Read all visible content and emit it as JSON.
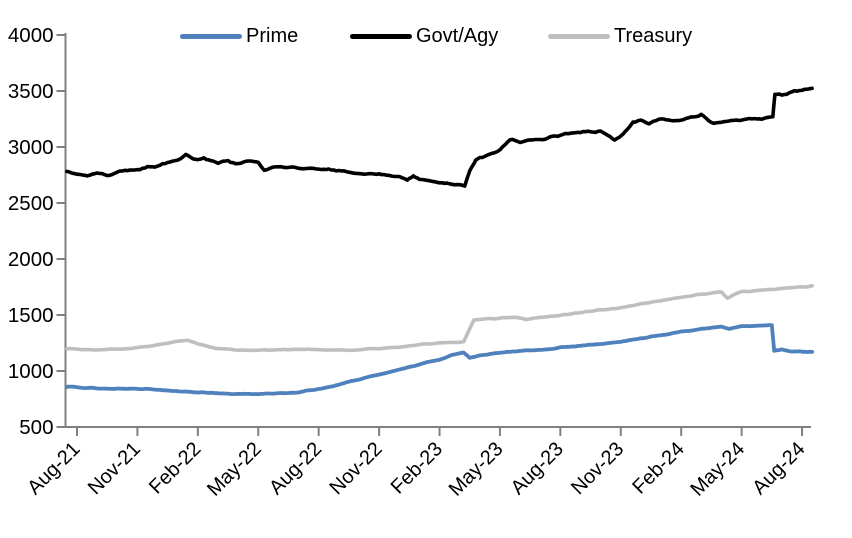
{
  "chart_data": {
    "type": "line",
    "title": "",
    "xlabel": "",
    "ylabel": "",
    "legend_position": "top",
    "grid": false,
    "background_color": "#FFFFFF",
    "axis_color": "#808080",
    "text_color": "#000000",
    "ylim": [
      500,
      4000
    ],
    "y_ticks": [
      500,
      1000,
      1500,
      2000,
      2500,
      3000,
      3500,
      4000
    ],
    "x_tick_labels": [
      "Aug-21",
      "Nov-21",
      "Feb-22",
      "May-22",
      "Aug-22",
      "Nov-22",
      "Feb-23",
      "May-23",
      "Aug-23",
      "Nov-23",
      "Feb-24",
      "May-24",
      "Aug-24"
    ],
    "x_tick_month_index": [
      0,
      3,
      6,
      9,
      12,
      15,
      18,
      21,
      24,
      27,
      30,
      33,
      36
    ],
    "x_months_range": [
      -0.5,
      36.5
    ],
    "series": [
      {
        "name": "Prime",
        "color": "#4F81BD",
        "stroke_width": 3.8,
        "noise": 6,
        "points": [
          [
            -0.5,
            862
          ],
          [
            0,
            855
          ],
          [
            1,
            845
          ],
          [
            2,
            842
          ],
          [
            3,
            840
          ],
          [
            4,
            835
          ],
          [
            5,
            822
          ],
          [
            6,
            808
          ],
          [
            7,
            800
          ],
          [
            8,
            796
          ],
          [
            9,
            792
          ],
          [
            10,
            800
          ],
          [
            11,
            812
          ],
          [
            12,
            838
          ],
          [
            13,
            880
          ],
          [
            14,
            922
          ],
          [
            15,
            970
          ],
          [
            16,
            1015
          ],
          [
            17,
            1058
          ],
          [
            18,
            1105
          ],
          [
            18.8,
            1150
          ],
          [
            19.2,
            1168
          ],
          [
            19.5,
            1122
          ],
          [
            20,
            1140
          ],
          [
            21,
            1163
          ],
          [
            22,
            1180
          ],
          [
            23,
            1190
          ],
          [
            24,
            1210
          ],
          [
            25,
            1226
          ],
          [
            26,
            1242
          ],
          [
            27,
            1262
          ],
          [
            28,
            1288
          ],
          [
            29,
            1318
          ],
          [
            30,
            1352
          ],
          [
            31,
            1378
          ],
          [
            32,
            1395
          ],
          [
            32.4,
            1372
          ],
          [
            33,
            1398
          ],
          [
            34,
            1405
          ],
          [
            34.5,
            1408
          ],
          [
            34.62,
            1182
          ],
          [
            35,
            1192
          ],
          [
            35.5,
            1178
          ],
          [
            36,
            1172
          ],
          [
            36.5,
            1170
          ]
        ]
      },
      {
        "name": "Govt/Agy",
        "color": "#000000",
        "stroke_width": 3.6,
        "noise": 14,
        "points": [
          [
            -0.5,
            2772
          ],
          [
            0,
            2768
          ],
          [
            0.5,
            2745
          ],
          [
            1,
            2762
          ],
          [
            1.5,
            2748
          ],
          [
            2,
            2780
          ],
          [
            3,
            2798
          ],
          [
            4,
            2832
          ],
          [
            5,
            2890
          ],
          [
            5.4,
            2932
          ],
          [
            6,
            2882
          ],
          [
            6.3,
            2902
          ],
          [
            7,
            2852
          ],
          [
            7.5,
            2878
          ],
          [
            8,
            2846
          ],
          [
            8.4,
            2876
          ],
          [
            9,
            2858
          ],
          [
            9.3,
            2800
          ],
          [
            10,
            2826
          ],
          [
            11,
            2816
          ],
          [
            12,
            2810
          ],
          [
            13,
            2788
          ],
          [
            14,
            2764
          ],
          [
            15,
            2756
          ],
          [
            16,
            2732
          ],
          [
            16.4,
            2706
          ],
          [
            16.7,
            2740
          ],
          [
            17,
            2722
          ],
          [
            18,
            2680
          ],
          [
            19,
            2668
          ],
          [
            19.25,
            2655
          ],
          [
            19.5,
            2790
          ],
          [
            19.8,
            2880
          ],
          [
            20,
            2908
          ],
          [
            20.5,
            2932
          ],
          [
            21,
            2980
          ],
          [
            21.5,
            3060
          ],
          [
            22,
            3048
          ],
          [
            23,
            3068
          ],
          [
            24,
            3108
          ],
          [
            25,
            3132
          ],
          [
            26,
            3148
          ],
          [
            26.7,
            3062
          ],
          [
            27,
            3095
          ],
          [
            27.6,
            3225
          ],
          [
            28,
            3238
          ],
          [
            28.4,
            3208
          ],
          [
            29,
            3252
          ],
          [
            30,
            3235
          ],
          [
            31,
            3290
          ],
          [
            31.6,
            3206
          ],
          [
            32,
            3228
          ],
          [
            33,
            3240
          ],
          [
            34,
            3258
          ],
          [
            34.55,
            3272
          ],
          [
            34.65,
            3468
          ],
          [
            35,
            3462
          ],
          [
            35.5,
            3492
          ],
          [
            36,
            3508
          ],
          [
            36.5,
            3520
          ]
        ]
      },
      {
        "name": "Treasury",
        "color": "#BFBFBF",
        "stroke_width": 3.6,
        "noise": 6,
        "points": [
          [
            -0.5,
            1198
          ],
          [
            0,
            1195
          ],
          [
            1,
            1190
          ],
          [
            2,
            1196
          ],
          [
            3,
            1206
          ],
          [
            4,
            1232
          ],
          [
            5,
            1262
          ],
          [
            5.5,
            1276
          ],
          [
            6,
            1240
          ],
          [
            7,
            1200
          ],
          [
            8,
            1190
          ],
          [
            9,
            1186
          ],
          [
            10,
            1190
          ],
          [
            11,
            1192
          ],
          [
            12,
            1194
          ],
          [
            13,
            1186
          ],
          [
            14,
            1190
          ],
          [
            15,
            1202
          ],
          [
            16,
            1216
          ],
          [
            17,
            1236
          ],
          [
            18,
            1250
          ],
          [
            19.2,
            1262
          ],
          [
            19.7,
            1455
          ],
          [
            20,
            1462
          ],
          [
            21,
            1472
          ],
          [
            21.8,
            1478
          ],
          [
            22.3,
            1458
          ],
          [
            23,
            1478
          ],
          [
            24,
            1498
          ],
          [
            25,
            1520
          ],
          [
            26,
            1544
          ],
          [
            27,
            1568
          ],
          [
            28,
            1598
          ],
          [
            29,
            1628
          ],
          [
            30,
            1658
          ],
          [
            31,
            1686
          ],
          [
            32,
            1706
          ],
          [
            32.3,
            1652
          ],
          [
            32.7,
            1692
          ],
          [
            33,
            1708
          ],
          [
            34,
            1720
          ],
          [
            35,
            1736
          ],
          [
            36,
            1752
          ],
          [
            36.5,
            1758
          ]
        ]
      }
    ]
  }
}
